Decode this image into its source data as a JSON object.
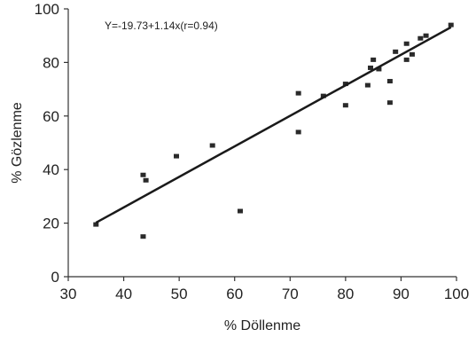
{
  "chart_data": {
    "type": "scatter",
    "annotation": "Y=-19.73+1.14x(r=0.94)",
    "xlabel": "% Döllenme",
    "ylabel": "% Gözlenme",
    "xlim": [
      30,
      100
    ],
    "ylim": [
      0,
      100
    ],
    "x_ticks": [
      30,
      40,
      50,
      60,
      70,
      80,
      90,
      100
    ],
    "y_ticks": [
      0,
      20,
      40,
      60,
      80,
      100
    ],
    "grid": false,
    "legend": "none",
    "fit_line": {
      "intercept": -19.73,
      "slope": 1.14,
      "x_range": [
        35,
        99
      ]
    },
    "points": [
      {
        "x": 35,
        "y": 19.5
      },
      {
        "x": 43.5,
        "y": 38
      },
      {
        "x": 44,
        "y": 36
      },
      {
        "x": 43.5,
        "y": 15
      },
      {
        "x": 49.5,
        "y": 45
      },
      {
        "x": 56,
        "y": 49
      },
      {
        "x": 61,
        "y": 24.5
      },
      {
        "x": 71.5,
        "y": 54
      },
      {
        "x": 71.5,
        "y": 68.5
      },
      {
        "x": 76,
        "y": 67.5
      },
      {
        "x": 80,
        "y": 72
      },
      {
        "x": 80,
        "y": 64
      },
      {
        "x": 84,
        "y": 71.5
      },
      {
        "x": 84.5,
        "y": 78
      },
      {
        "x": 85,
        "y": 81
      },
      {
        "x": 86,
        "y": 77.5
      },
      {
        "x": 88,
        "y": 73
      },
      {
        "x": 88,
        "y": 65
      },
      {
        "x": 89,
        "y": 84
      },
      {
        "x": 91,
        "y": 87
      },
      {
        "x": 91,
        "y": 81
      },
      {
        "x": 92,
        "y": 83
      },
      {
        "x": 93.5,
        "y": 89
      },
      {
        "x": 94.5,
        "y": 90
      },
      {
        "x": 99,
        "y": 94
      }
    ],
    "colors": {
      "points": "#2a2a2a",
      "fit_line": "#1a1a1a",
      "axis": "#333333"
    }
  }
}
